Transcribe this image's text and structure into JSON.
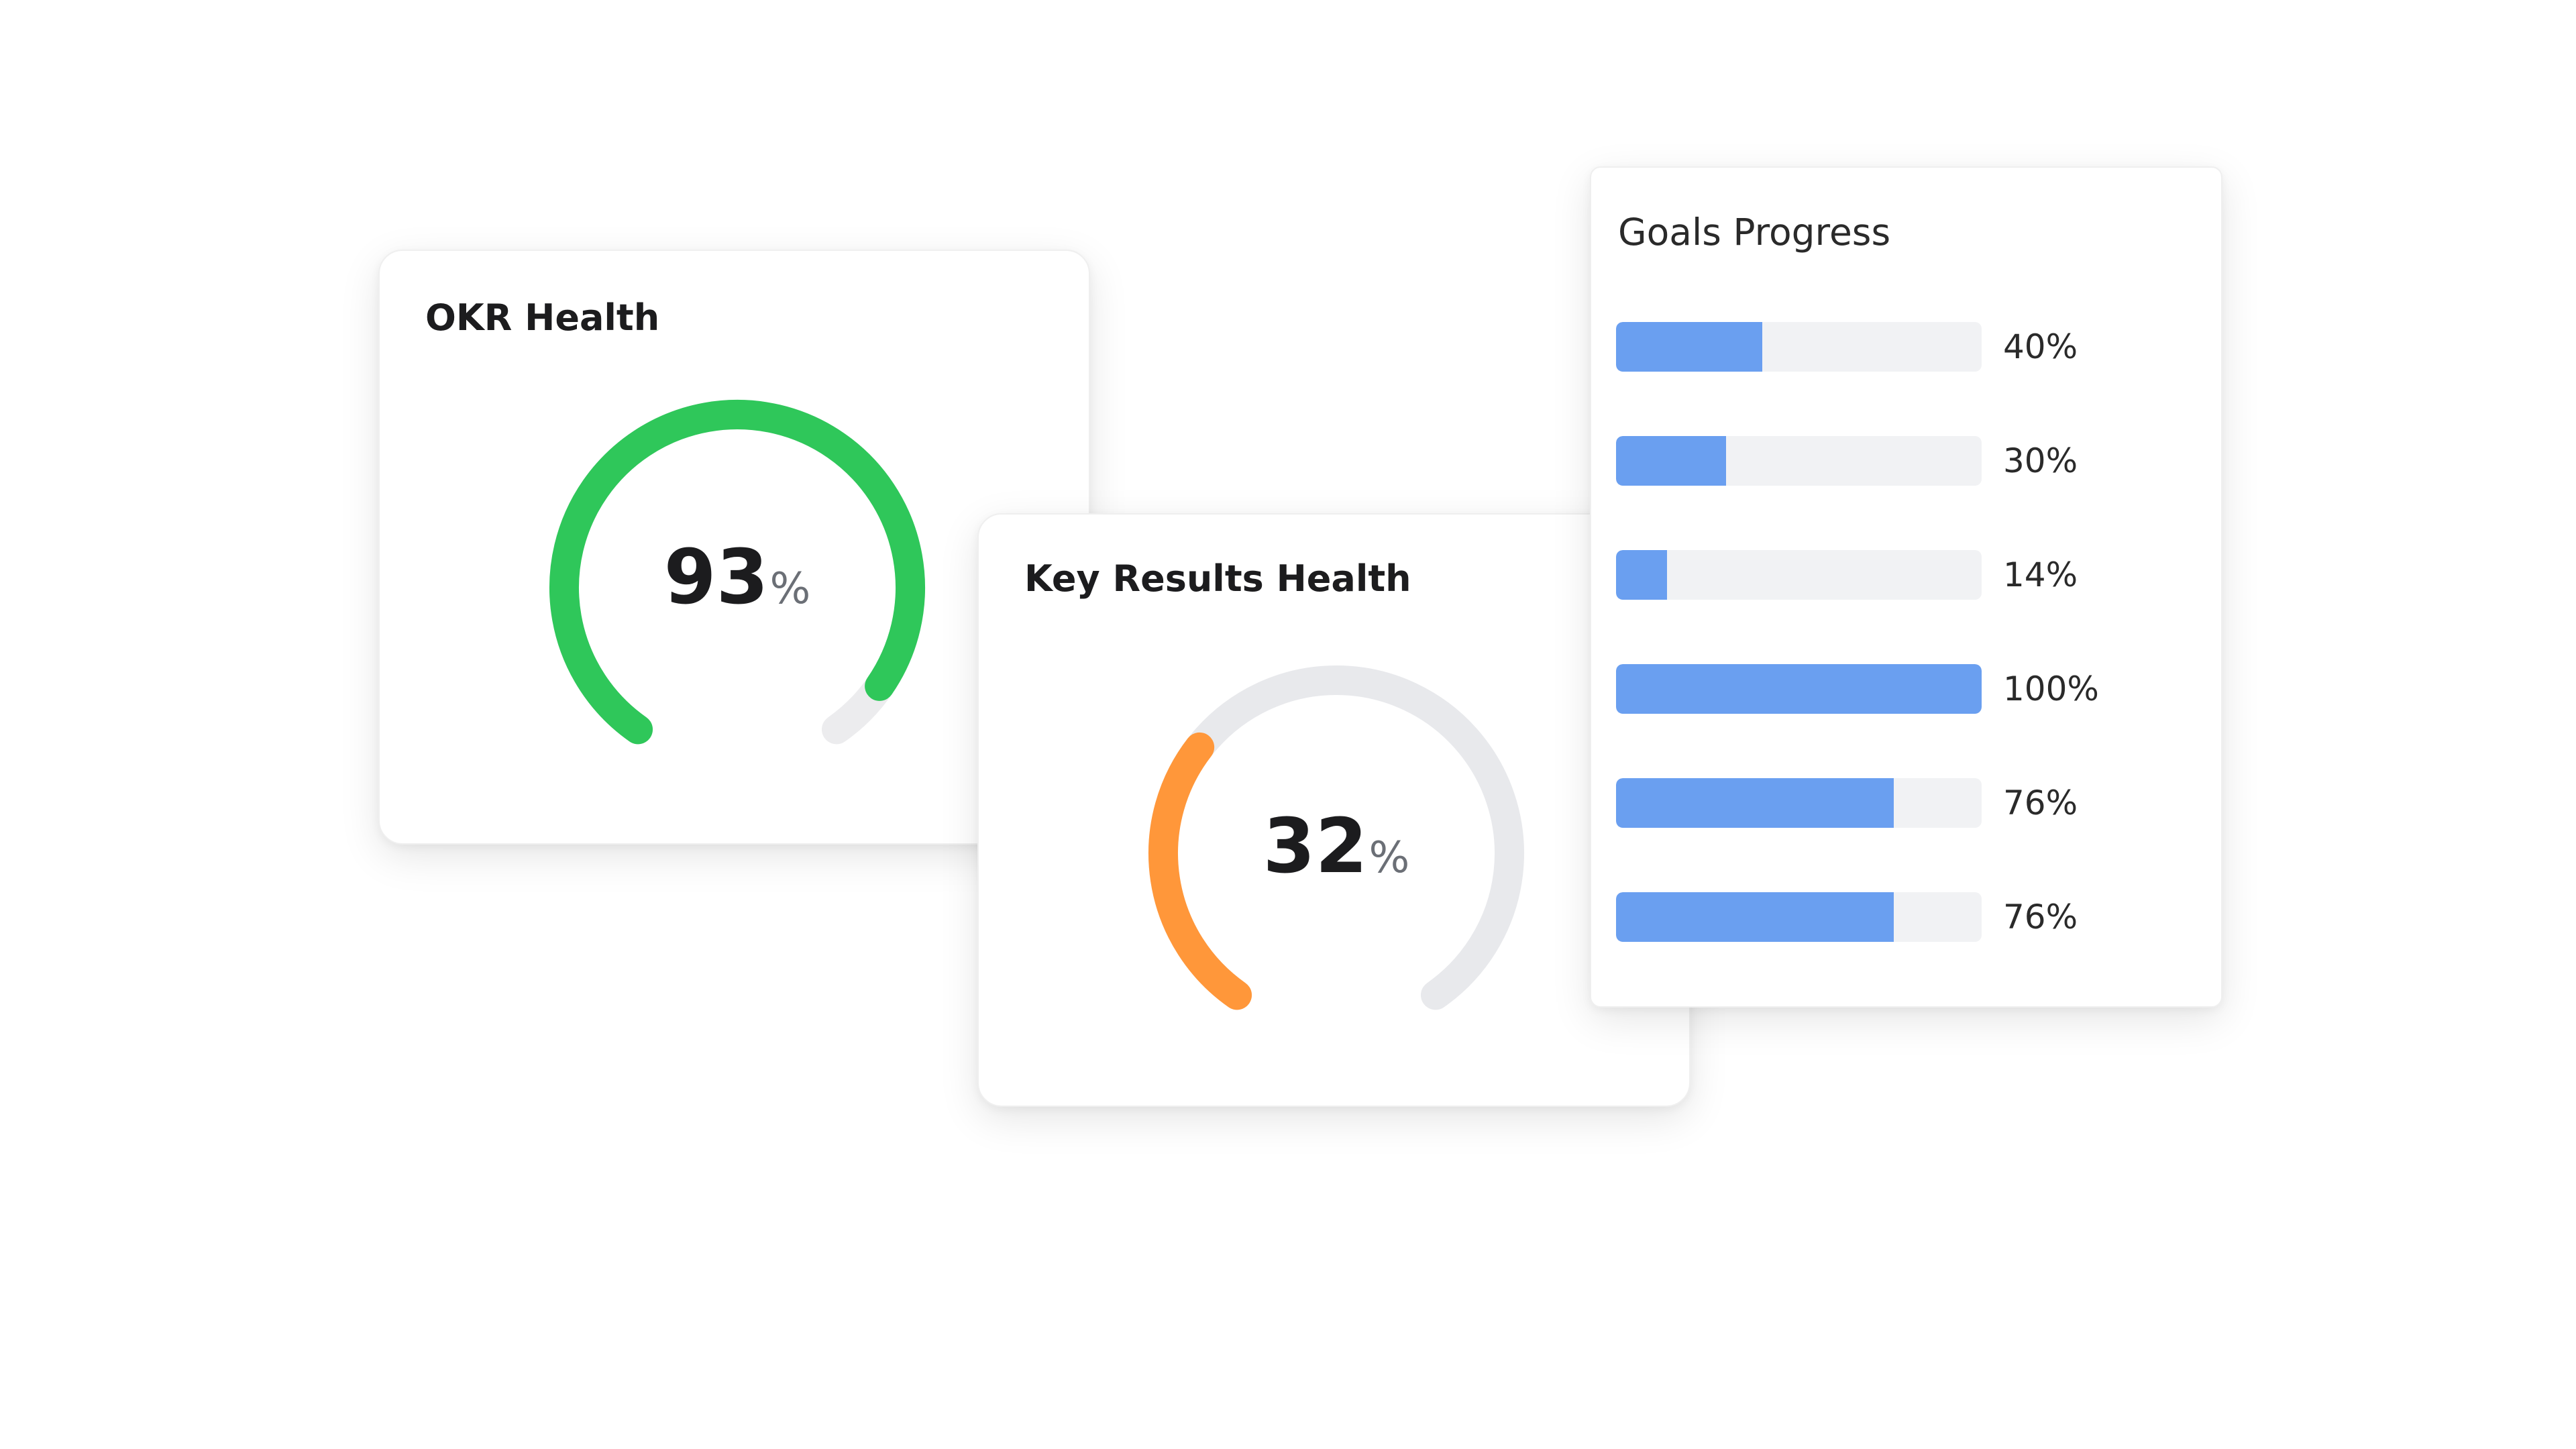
{
  "okr_health": {
    "title": "OKR Health",
    "value": "93",
    "unit": "%",
    "percent": 93,
    "color": "#2fc75a",
    "track_color": "#ececee"
  },
  "key_results_health": {
    "title": "Key Results Health",
    "value": "32",
    "unit": "%",
    "percent": 32,
    "color": "#ff973a",
    "track_color": "#e8e9ec"
  },
  "goals_progress": {
    "title": "Goals Progress",
    "bar_color": "#6a9ff0",
    "track_color": "#f1f2f4",
    "items": [
      {
        "label": "40%",
        "percent": 40
      },
      {
        "label": "30%",
        "percent": 30
      },
      {
        "label": "14%",
        "percent": 14
      },
      {
        "label": "100%",
        "percent": 100
      },
      {
        "label": "76%",
        "percent": 76
      },
      {
        "label": "76%",
        "percent": 76
      }
    ]
  }
}
